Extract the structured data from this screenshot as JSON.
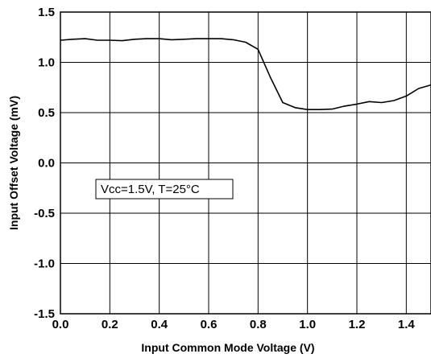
{
  "chart_data": {
    "type": "line",
    "xlabel": "Input Common Mode Voltage (V)",
    "ylabel": "Input Offset Voltage (mV)",
    "xlim": [
      0.0,
      1.5
    ],
    "ylim": [
      -1.5,
      1.5
    ],
    "x_ticks": [
      "0.0",
      "0.2",
      "0.4",
      "0.6",
      "0.8",
      "1.0",
      "1.2",
      "1.4"
    ],
    "y_ticks": [
      "1.5",
      "1.0",
      "0.5",
      "0.0",
      "-0.5",
      "-1.0",
      "-1.5"
    ],
    "grid": true,
    "annotation": "Vcc=1.5V, T=25°C",
    "series": [
      {
        "x": [
          0.0,
          0.05,
          0.1,
          0.15,
          0.2,
          0.25,
          0.3,
          0.35,
          0.4,
          0.45,
          0.5,
          0.55,
          0.6,
          0.65,
          0.7,
          0.75,
          0.8,
          0.85,
          0.9,
          0.95,
          1.0,
          1.05,
          1.1,
          1.15,
          1.2,
          1.25,
          1.3,
          1.35,
          1.4,
          1.45,
          1.5
        ],
        "y": [
          1.22,
          1.23,
          1.235,
          1.22,
          1.22,
          1.215,
          1.23,
          1.235,
          1.235,
          1.225,
          1.23,
          1.235,
          1.235,
          1.235,
          1.225,
          1.2,
          1.13,
          0.85,
          0.6,
          0.55,
          0.53,
          0.53,
          0.535,
          0.565,
          0.585,
          0.61,
          0.6,
          0.62,
          0.665,
          0.74,
          0.775
        ]
      }
    ]
  }
}
